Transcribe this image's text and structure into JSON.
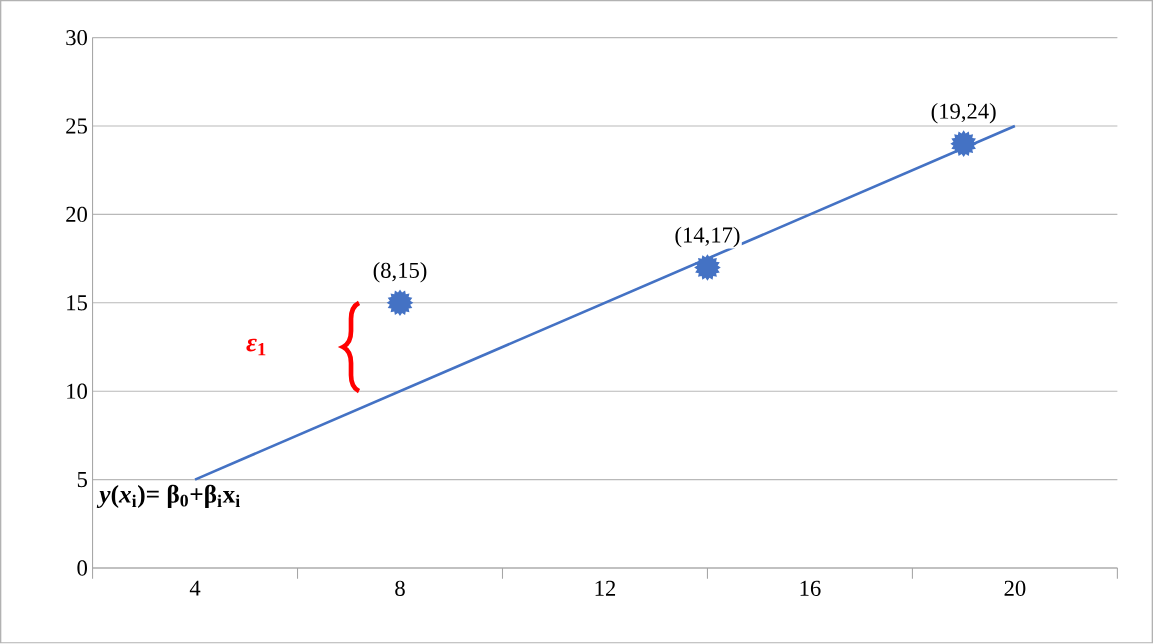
{
  "chart_data": {
    "type": "scatter",
    "xlim": [
      2,
      22
    ],
    "xticks": [
      {
        "value": 2,
        "label": null
      },
      4,
      {
        "value": 6,
        "label": null
      },
      8,
      {
        "value": 10,
        "label": null
      },
      12,
      {
        "value": 14,
        "label": null
      },
      16,
      {
        "value": 18,
        "label": null
      },
      20,
      {
        "value": 22,
        "label": null
      }
    ],
    "ylim": [
      0,
      30
    ],
    "yticks": [
      0,
      5,
      10,
      15,
      20,
      25,
      30
    ],
    "grid": "y",
    "series": [
      {
        "color": "#4472c4",
        "marker": "star",
        "x": [
          8,
          14,
          19
        ],
        "values": [
          15,
          17,
          24
        ]
      },
      {
        "type": "line",
        "color": "#4472c4",
        "marker": "none",
        "x": [
          4,
          20
        ],
        "values": [
          5,
          25
        ]
      }
    ],
    "annotations": [
      {
        "text": "(8,15)",
        "x": 8,
        "y": 15
      },
      {
        "text": "(14,17)",
        "x": 14,
        "y": 17
      },
      {
        "text": "(19,24)",
        "x": 19,
        "y": 24
      },
      "*ε*$_{1}$",
      "*y*(*x*$_{i}$)= β$_{0}$+β$_{i}$x$_{i}$"
    ]
  }
}
